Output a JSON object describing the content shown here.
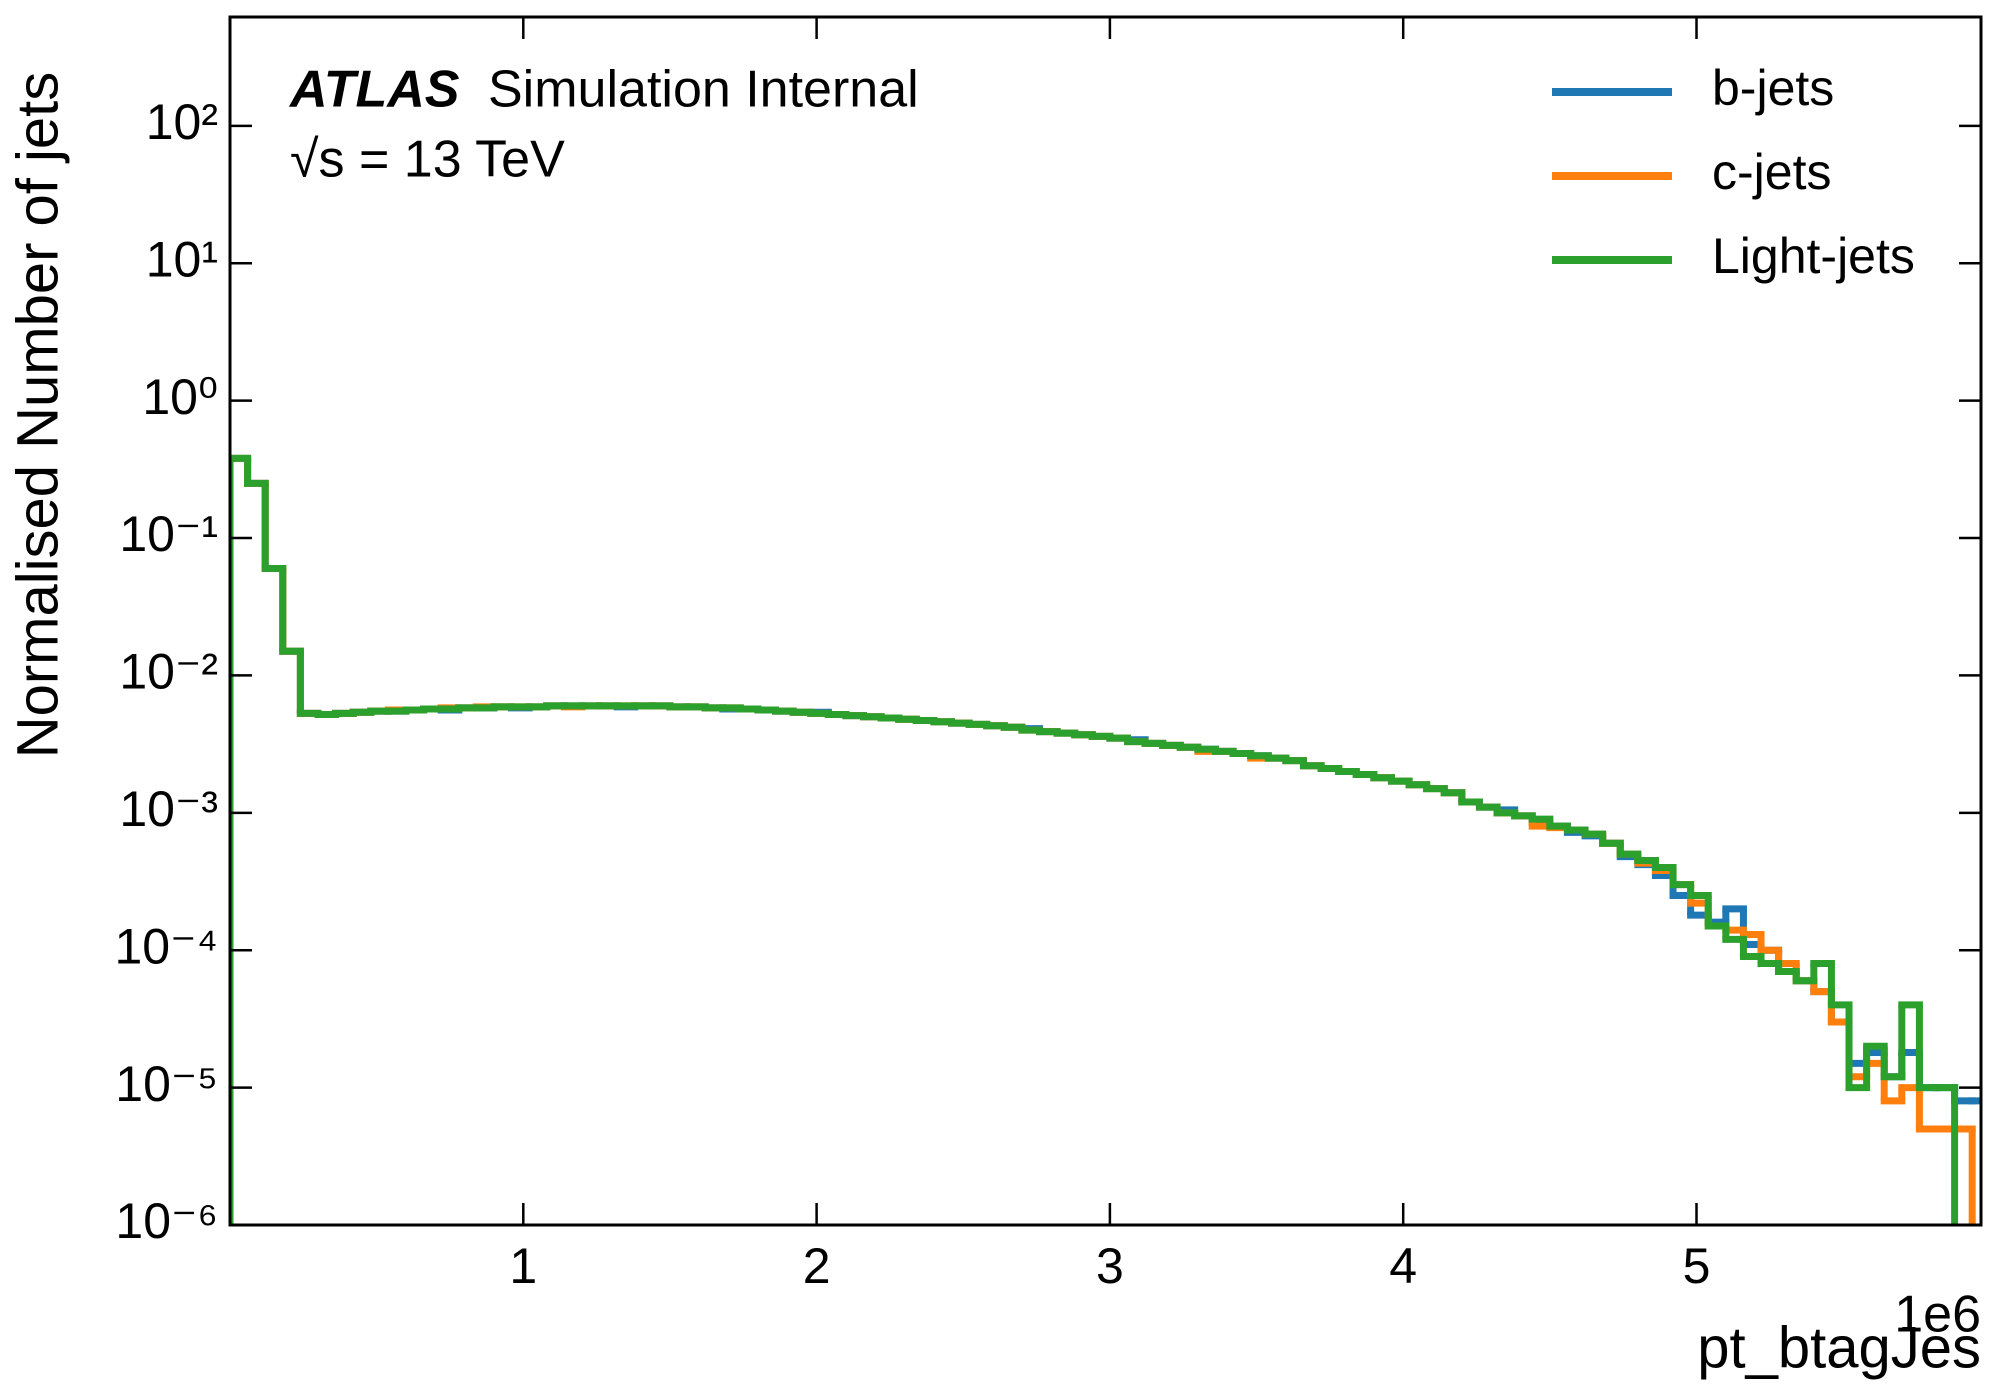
{
  "chart_data": {
    "type": "histogram",
    "atlas_label": "ATLAS",
    "atlas_sublabel": "Simulation Internal",
    "energy_label": "√s = 13 TeV",
    "x_label": "pt_btagJes",
    "x_offset_label": "1e6",
    "y_label": "Normalised Number of jets",
    "log_y": true,
    "legend": "upper right",
    "xlim": [
      0,
      5.97
    ],
    "xticks": [
      1,
      2,
      3,
      4,
      5
    ],
    "ylim": [
      1e-06,
      620
    ],
    "yticks": [
      {
        "value": 1e-06,
        "label": "10⁻⁶"
      },
      {
        "value": 1e-05,
        "label": "10⁻⁵"
      },
      {
        "value": 0.0001,
        "label": "10⁻⁴"
      },
      {
        "value": 0.001,
        "label": "10⁻³"
      },
      {
        "value": 0.01,
        "label": "10⁻²"
      },
      {
        "value": 0.1,
        "label": "10⁻¹"
      },
      {
        "value": 1,
        "label": "10⁰"
      },
      {
        "value": 10,
        "label": "10¹"
      },
      {
        "value": 100,
        "label": "10²"
      }
    ],
    "bins": [
      0,
      0.06,
      0.12,
      0.18,
      0.24,
      0.3,
      0.36,
      0.42,
      0.48,
      0.54,
      0.6,
      0.66,
      0.72,
      0.78,
      0.84,
      0.9,
      0.96,
      1.02,
      1.08,
      1.14,
      1.2,
      1.26,
      1.32,
      1.38,
      1.44,
      1.5,
      1.56,
      1.62,
      1.68,
      1.74,
      1.8,
      1.86,
      1.92,
      1.98,
      2.04,
      2.1,
      2.16,
      2.22,
      2.28,
      2.34,
      2.4,
      2.46,
      2.52,
      2.58,
      2.64,
      2.7,
      2.76,
      2.82,
      2.88,
      2.94,
      3,
      3.06,
      3.12,
      3.18,
      3.24,
      3.3,
      3.36,
      3.42,
      3.48,
      3.54,
      3.6,
      3.66,
      3.72,
      3.78,
      3.84,
      3.9,
      3.96,
      4.02,
      4.08,
      4.14,
      4.2,
      4.26,
      4.32,
      4.38,
      4.44,
      4.5,
      4.56,
      4.62,
      4.68,
      4.74,
      4.8,
      4.86,
      4.92,
      4.98,
      5.04,
      5.1,
      5.16,
      5.22,
      5.28,
      5.34,
      5.4,
      5.46,
      5.52,
      5.58,
      5.64,
      5.7,
      5.76,
      5.82,
      5.88,
      5.94,
      6
    ],
    "series": [
      {
        "name": "b-jets",
        "color": "#1f77b4",
        "values": [
          0.38,
          0.25,
          0.06,
          0.015,
          0.0053,
          0.0052,
          0.0053,
          0.0054,
          0.0055,
          0.0055,
          0.0056,
          0.0057,
          0.0056,
          0.0058,
          0.0058,
          0.0059,
          0.0058,
          0.0059,
          0.006,
          0.006,
          0.006,
          0.006,
          0.0059,
          0.006,
          0.006,
          0.0059,
          0.0059,
          0.0058,
          0.0057,
          0.0057,
          0.0056,
          0.0055,
          0.0054,
          0.0054,
          0.0052,
          0.0051,
          0.005,
          0.0049,
          0.0048,
          0.0047,
          0.0046,
          0.0045,
          0.0044,
          0.0043,
          0.0042,
          0.0041,
          0.0039,
          0.0038,
          0.0037,
          0.0036,
          0.0035,
          0.0034,
          0.0032,
          0.0031,
          0.003,
          0.0029,
          0.0028,
          0.0027,
          0.0026,
          0.0025,
          0.0024,
          0.0022,
          0.0021,
          0.002,
          0.0019,
          0.0018,
          0.0017,
          0.0016,
          0.0015,
          0.0014,
          0.0012,
          0.0011,
          0.00105,
          0.00095,
          0.00085,
          0.0008,
          0.00072,
          0.00068,
          0.0006,
          0.00048,
          0.00042,
          0.00035,
          0.00025,
          0.00018,
          0.00016,
          0.0002,
          0.00011,
          0.0001,
          7e-05,
          6e-05,
          5e-05,
          3e-05,
          1.5e-05,
          1.8e-05,
          1.2e-05,
          1.8e-05,
          1e-05,
          1e-05,
          8e-06,
          8e-06
        ]
      },
      {
        "name": "c-jets",
        "color": "#ff7f0e",
        "values": [
          0.38,
          0.25,
          0.06,
          0.015,
          0.0053,
          0.0052,
          0.0053,
          0.0054,
          0.0055,
          0.0056,
          0.0056,
          0.0057,
          0.0058,
          0.0058,
          0.0059,
          0.0059,
          0.0059,
          0.0059,
          0.006,
          0.0059,
          0.006,
          0.006,
          0.006,
          0.006,
          0.006,
          0.0059,
          0.0059,
          0.0058,
          0.0058,
          0.0057,
          0.0056,
          0.0055,
          0.0054,
          0.0053,
          0.0052,
          0.0051,
          0.005,
          0.0049,
          0.0048,
          0.0047,
          0.0046,
          0.0045,
          0.0044,
          0.0043,
          0.0042,
          0.004,
          0.0039,
          0.0038,
          0.0037,
          0.0036,
          0.0035,
          0.0033,
          0.0032,
          0.0031,
          0.003,
          0.0028,
          0.0028,
          0.0027,
          0.0025,
          0.0025,
          0.0024,
          0.0022,
          0.0021,
          0.002,
          0.0019,
          0.0018,
          0.0017,
          0.0016,
          0.0015,
          0.0014,
          0.0012,
          0.0011,
          0.001,
          0.00095,
          0.0008,
          0.00078,
          0.00075,
          0.0007,
          0.0006,
          0.0005,
          0.00043,
          0.00038,
          0.0003,
          0.00022,
          0.00015,
          0.00014,
          0.00013,
          0.0001,
          8e-05,
          6e-05,
          5e-05,
          3e-05,
          1.2e-05,
          1.5e-05,
          8e-06,
          1e-05,
          5e-06,
          5e-06,
          5e-06,
          0
        ]
      },
      {
        "name": "Light-jets",
        "color": "#2ca02c",
        "values": [
          0.38,
          0.25,
          0.06,
          0.015,
          0.0053,
          0.0052,
          0.0053,
          0.0054,
          0.0055,
          0.0055,
          0.0056,
          0.0057,
          0.0057,
          0.0058,
          0.0058,
          0.0059,
          0.0059,
          0.0059,
          0.006,
          0.006,
          0.006,
          0.006,
          0.006,
          0.006,
          0.006,
          0.0059,
          0.0059,
          0.0058,
          0.0058,
          0.0057,
          0.0056,
          0.0055,
          0.0054,
          0.0053,
          0.0052,
          0.0051,
          0.005,
          0.0049,
          0.0048,
          0.0047,
          0.0046,
          0.0045,
          0.0044,
          0.0043,
          0.0042,
          0.004,
          0.0039,
          0.0038,
          0.0037,
          0.0036,
          0.0035,
          0.0033,
          0.0032,
          0.0031,
          0.003,
          0.0029,
          0.0028,
          0.0027,
          0.0026,
          0.0025,
          0.0024,
          0.0022,
          0.0021,
          0.002,
          0.0019,
          0.0018,
          0.0017,
          0.0016,
          0.0015,
          0.0014,
          0.0012,
          0.0011,
          0.001,
          0.00095,
          0.0009,
          0.0008,
          0.00075,
          0.0007,
          0.0006,
          0.0005,
          0.00045,
          0.0004,
          0.0003,
          0.00025,
          0.00015,
          0.00012,
          9e-05,
          8e-05,
          7e-05,
          6e-05,
          8e-05,
          4e-05,
          1e-05,
          2e-05,
          1.2e-05,
          4e-05,
          1e-05,
          1e-05,
          0,
          0
        ]
      }
    ]
  }
}
